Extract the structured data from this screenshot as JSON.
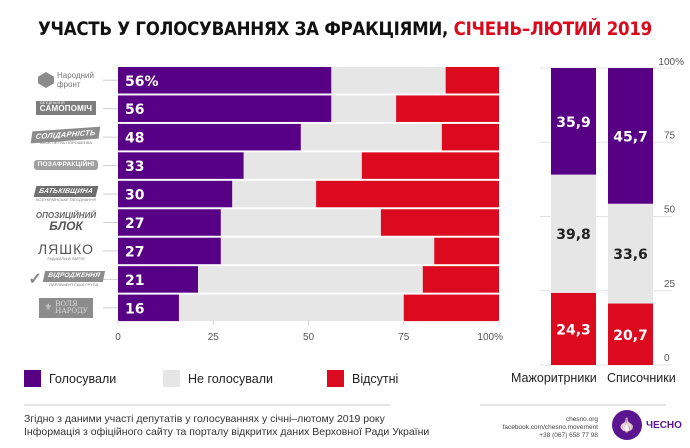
{
  "title": {
    "main": "УЧАСТЬ У ГОЛОСУВАННЯХ ЗА ФРАКЦІЯМИ,",
    "highlight": "СІЧЕНЬ–ЛЮТИЙ 2019"
  },
  "colors": {
    "voted": "#580085",
    "not_voted": "#e6e6e6",
    "absent": "#dc0a1e",
    "title_highlight": "#d90a1e",
    "brand": "#5a1690"
  },
  "logos": [
    {
      "name": "Народний фронт",
      "line1": "Народний",
      "line2": "фронт"
    },
    {
      "name": "Об'єднання Самопоміч",
      "top": "ОБ'ЄДНАННЯ",
      "text": "САМОПОМІЧ"
    },
    {
      "name": "Солідарність",
      "text": "СОЛІДАРНІСТЬ",
      "sub": "БЛОК ПЕТРА ПОРОШЕНКА"
    },
    {
      "name": "Позафракційні",
      "text": "ПОЗАФРАКЦІЙНІ"
    },
    {
      "name": "Батьківщина",
      "text": "БАТЬКІВЩИНА",
      "sub": "ВСЕУКРАЇНСЬКЕ ОБ'ЄДНАННЯ"
    },
    {
      "name": "Опозиційний блок",
      "line1": "ОПОЗИЦІЙНИЙ",
      "line2": "БЛОК"
    },
    {
      "name": "Ляшко",
      "text": "ЛЯШКО",
      "sub": "РАДИКАЛЬНА ПАРТІЯ"
    },
    {
      "name": "Відродження",
      "text": "ВІДРОДЖЕННЯ",
      "sub": "ПАРЛАМЕНТСЬКА ГРУПА"
    },
    {
      "name": "Воля народу",
      "line1": "ВОЛЯ",
      "line2": "НАРОДУ"
    }
  ],
  "chart_data": [
    {
      "type": "bar",
      "orientation": "horizontal",
      "stacked": true,
      "categories": [
        "Народний фронт",
        "Самопоміч",
        "Солідарність",
        "Позафракційні",
        "Батьківщина",
        "Опозиційний блок",
        "Радикальна партія Ляшка",
        "Відродження",
        "Воля народу"
      ],
      "series": [
        {
          "name": "Голосували",
          "values": [
            56,
            56,
            48,
            33,
            30,
            27,
            27,
            21,
            16
          ]
        },
        {
          "name": "Не голосували",
          "values": [
            30,
            17,
            37,
            31,
            22,
            42,
            56,
            59,
            59
          ]
        },
        {
          "name": "Відсутні",
          "values": [
            14,
            27,
            15,
            36,
            48,
            31,
            17,
            20,
            25
          ]
        }
      ],
      "data_labels": [
        "56%",
        "56",
        "48",
        "33",
        "30",
        "27",
        "27",
        "21",
        "16"
      ],
      "xlim": [
        0,
        100
      ],
      "xticks": [
        "0",
        "25",
        "50",
        "75",
        "100%"
      ],
      "grid": false
    },
    {
      "type": "bar",
      "orientation": "vertical",
      "stacked": true,
      "categories": [
        "Мажоритрники",
        "Списочники"
      ],
      "series": [
        {
          "name": "Голосували",
          "values": [
            35.9,
            45.7
          ],
          "labels": [
            "35,9",
            "45,7"
          ]
        },
        {
          "name": "Не голосували",
          "values": [
            39.8,
            33.6
          ],
          "labels": [
            "39,8",
            "33,6"
          ]
        },
        {
          "name": "Відсутні",
          "values": [
            24.3,
            20.7
          ],
          "labels": [
            "24,3",
            "20,7"
          ]
        }
      ],
      "ylim": [
        0,
        100
      ],
      "yticks": [
        "0",
        "25",
        "50",
        "75",
        "100%"
      ],
      "grid": true
    }
  ],
  "legend": [
    {
      "label": "Голосували",
      "color": "#580085"
    },
    {
      "label": "Не голосували",
      "color": "#e6e6e6"
    },
    {
      "label": "Відсутні",
      "color": "#dc0a1e"
    }
  ],
  "footer": {
    "line1": "Згідно з даними участі депутатів у голосуваннях у січні–лютому 2019 року",
    "line2": "Інформація з офіційного сайту та порталу відкритих даних Верховної Ради України",
    "site": "chesno.org",
    "facebook": "facebook.com/chesno.movement",
    "phone": "+38 (067) 658 77 98",
    "brand": "ЧЕСНО"
  }
}
